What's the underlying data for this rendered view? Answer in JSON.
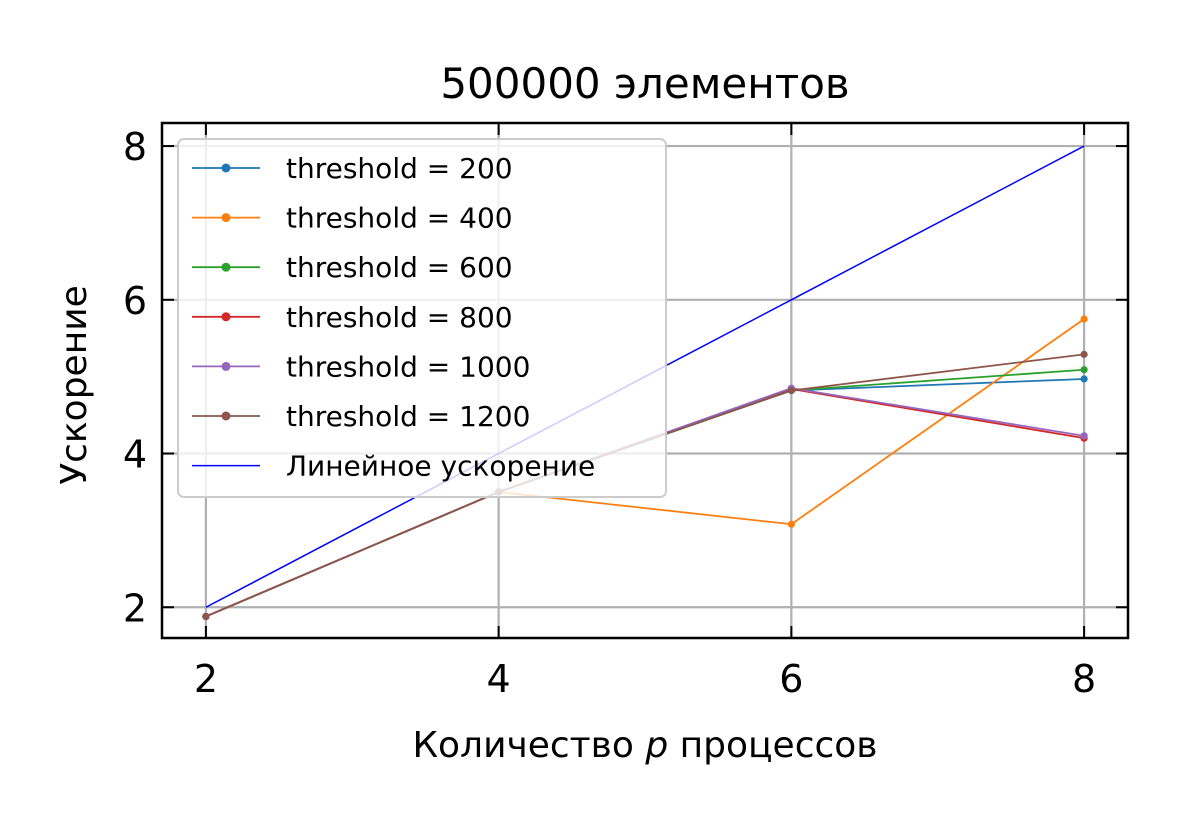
{
  "chart_data": {
    "type": "line",
    "title": "500000 элементов",
    "xlabel_prefix": "Количество ",
    "xlabel_var": "p",
    "xlabel_suffix": " процессов",
    "ylabel": "Ускорение",
    "x": [
      2,
      4,
      6,
      8
    ],
    "xlim": [
      1.7,
      8.3
    ],
    "ylim": [
      1.6,
      8.3
    ],
    "xticks": [
      2,
      4,
      6,
      8
    ],
    "yticks": [
      2,
      4,
      6,
      8
    ],
    "grid": true,
    "legend_position": "upper-left",
    "series": [
      {
        "name": "threshold = 200",
        "color": "#1f77b4",
        "values": [
          1.88,
          3.5,
          4.82,
          4.97
        ],
        "markers": true
      },
      {
        "name": "threshold = 400",
        "color": "#ff7f0e",
        "values": [
          1.88,
          3.5,
          3.08,
          5.75
        ],
        "markers": true
      },
      {
        "name": "threshold = 600",
        "color": "#2ca02c",
        "values": [
          1.88,
          3.5,
          4.82,
          5.09
        ],
        "markers": true
      },
      {
        "name": "threshold = 800",
        "color": "#d62728",
        "values": [
          1.88,
          3.5,
          4.84,
          4.2
        ],
        "markers": true
      },
      {
        "name": "threshold = 1000",
        "color": "#9467bd",
        "values": [
          1.88,
          3.5,
          4.85,
          4.23
        ],
        "markers": true
      },
      {
        "name": "threshold = 1200",
        "color": "#8c564b",
        "values": [
          1.88,
          3.5,
          4.82,
          5.29
        ],
        "markers": true
      },
      {
        "name": "Линейное ускорение",
        "color": "#0000ff",
        "values": [
          2,
          4,
          6,
          8
        ],
        "markers": false
      }
    ]
  }
}
